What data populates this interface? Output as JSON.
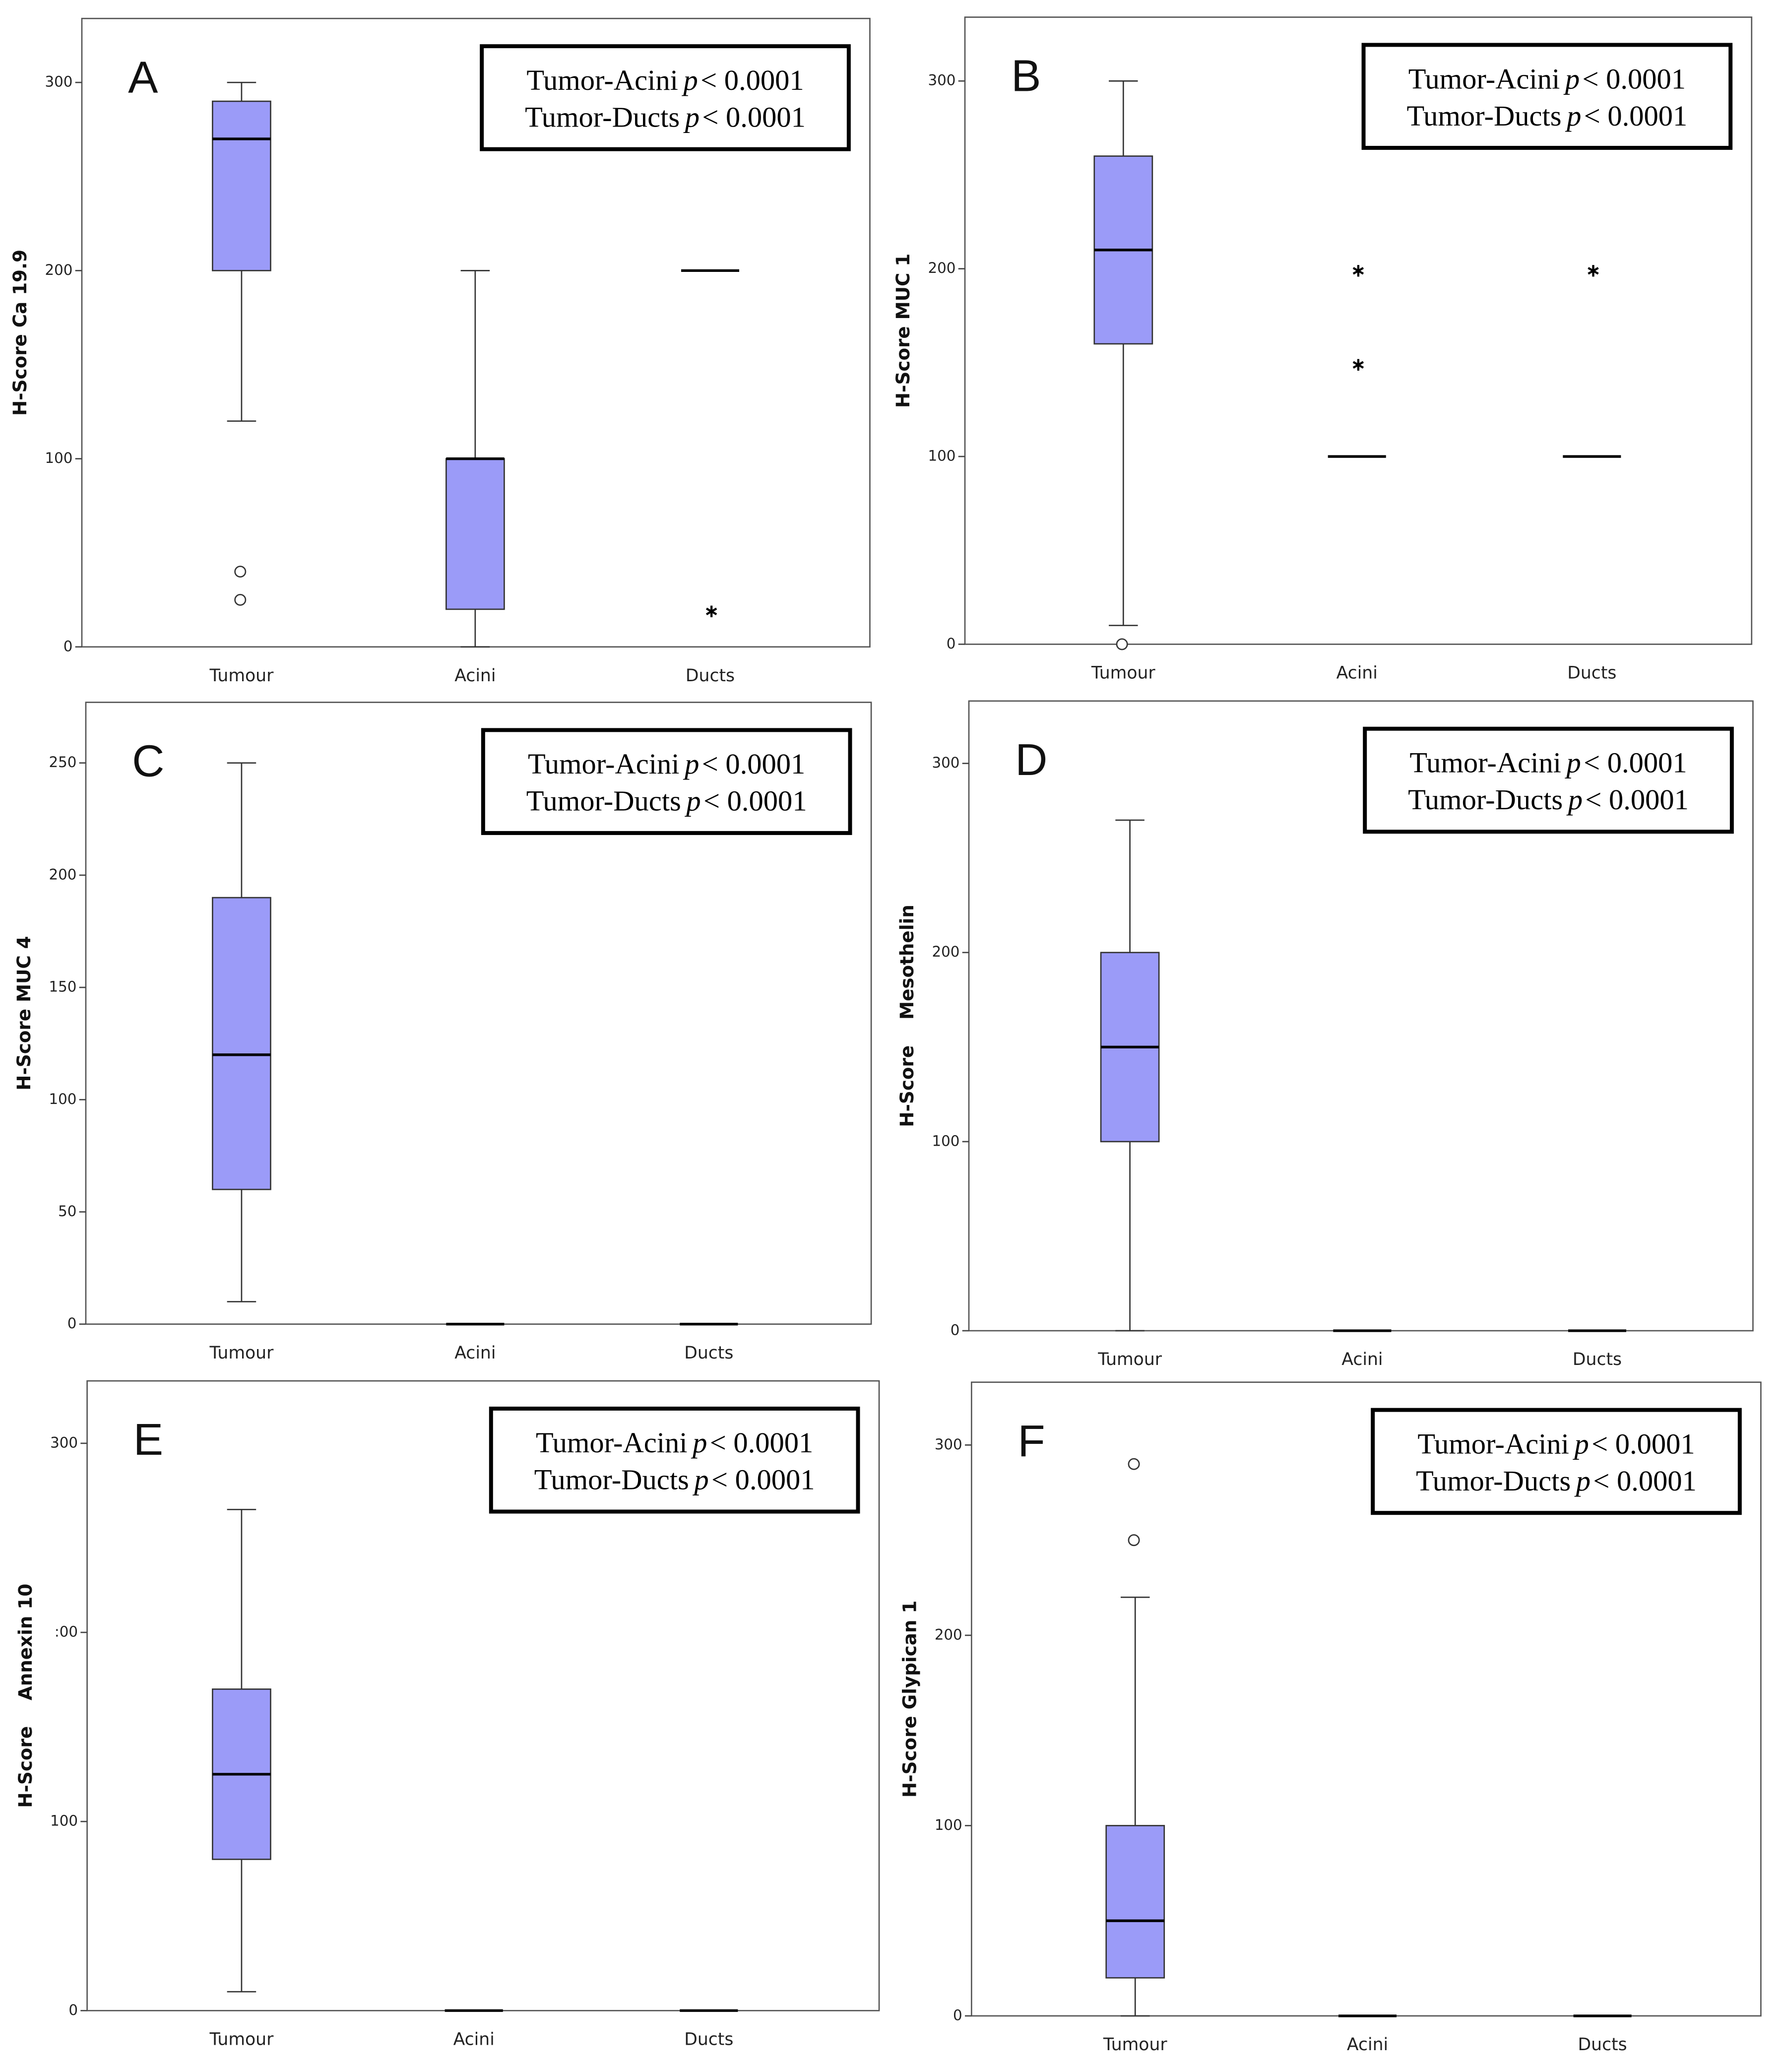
{
  "chart_data": [
    {
      "type": "box",
      "title": "A",
      "y_label": "H-Score Ca 19.9",
      "categories": [
        "Tumour",
        "Acini",
        "Ducts"
      ],
      "boxes": [
        {
          "min": 120,
          "q1": 200,
          "median": 270,
          "q3": 290,
          "max": 300,
          "outliers": [
            40,
            25
          ],
          "outlier_marker": "circle"
        },
        {
          "min": 0,
          "q1": 20,
          "median": 100,
          "q3": 100,
          "max": 200,
          "outliers": [],
          "outlier_marker": "circle"
        },
        {
          "min": 200,
          "q1": 200,
          "median": 200,
          "q3": 200,
          "max": 200,
          "outliers": [
            20
          ],
          "outlier_marker": "star"
        }
      ],
      "color": "#9b9bf8",
      "ylim": [
        0,
        334
      ],
      "yticks": [
        0,
        100,
        200,
        300
      ],
      "annotations": [
        {
          "label": "Tumor-Acini",
          "stat": "p",
          "text": "< 0.0001"
        },
        {
          "label": "Tumor-Ducts",
          "stat": "p",
          "text": "< 0.0001"
        }
      ]
    },
    {
      "type": "box",
      "title": "B",
      "y_label": "H-Score MUC 1",
      "categories": [
        "Tumour",
        "Acini",
        "Ducts"
      ],
      "boxes": [
        {
          "min": 10,
          "q1": 160,
          "median": 210,
          "q3": 260,
          "max": 300,
          "outliers": [
            0
          ],
          "outlier_marker": "circle"
        },
        {
          "min": 100,
          "q1": 100,
          "median": 100,
          "q3": 100,
          "max": 100,
          "outliers": [
            200,
            150
          ],
          "outlier_marker": "star"
        },
        {
          "min": 100,
          "q1": 100,
          "median": 100,
          "q3": 100,
          "max": 100,
          "outliers": [
            200
          ],
          "outlier_marker": "star"
        }
      ],
      "color": "#9b9bf8",
      "ylim": [
        0,
        334
      ],
      "yticks": [
        0,
        100,
        200,
        300
      ],
      "annotations": [
        {
          "label": "Tumor-Acini",
          "stat": "p",
          "text": "< 0.0001"
        },
        {
          "label": "Tumor-Ducts",
          "stat": "p",
          "text": "< 0.0001"
        }
      ]
    },
    {
      "type": "box",
      "title": "C",
      "y_label": "H-Score MUC 4",
      "categories": [
        "Tumour",
        "Acini",
        "Ducts"
      ],
      "boxes": [
        {
          "min": 10,
          "q1": 60,
          "median": 120,
          "q3": 190,
          "max": 250,
          "outliers": [],
          "outlier_marker": "circle"
        },
        {
          "min": 0,
          "q1": 0,
          "median": 0,
          "q3": 0,
          "max": 0,
          "outliers": [],
          "outlier_marker": "circle"
        },
        {
          "min": 0,
          "q1": 0,
          "median": 0,
          "q3": 0,
          "max": 0,
          "outliers": [],
          "outlier_marker": "circle"
        }
      ],
      "color": "#9b9bf8",
      "ylim": [
        0,
        277
      ],
      "yticks": [
        0,
        50,
        100,
        150,
        200,
        250
      ],
      "annotations": [
        {
          "label": "Tumor-Acini",
          "stat": "p",
          "text": "< 0.0001"
        },
        {
          "label": "Tumor-Ducts",
          "stat": "p",
          "text": "< 0.0001"
        }
      ]
    },
    {
      "type": "box",
      "title": "D",
      "y_label": "H-Score    Mesothelin",
      "categories": [
        "Tumour",
        "Acini",
        "Ducts"
      ],
      "boxes": [
        {
          "min": 0,
          "q1": 100,
          "median": 150,
          "q3": 200,
          "max": 270,
          "outliers": [],
          "outlier_marker": "circle"
        },
        {
          "min": 0,
          "q1": 0,
          "median": 0,
          "q3": 0,
          "max": 0,
          "outliers": [],
          "outlier_marker": "circle"
        },
        {
          "min": 0,
          "q1": 0,
          "median": 0,
          "q3": 0,
          "max": 0,
          "outliers": [],
          "outlier_marker": "circle"
        }
      ],
      "color": "#9b9bf8",
      "ylim": [
        0,
        333
      ],
      "yticks": [
        0,
        100,
        200,
        300
      ],
      "annotations": [
        {
          "label": "Tumor-Acini",
          "stat": "p",
          "text": "< 0.0001"
        },
        {
          "label": "Tumor-Ducts",
          "stat": "p",
          "text": "< 0.0001"
        }
      ]
    },
    {
      "type": "box",
      "title": "E",
      "y_label": "H-Score    Annexin 10",
      "categories": [
        "Tumour",
        "Acini",
        "Ducts"
      ],
      "boxes": [
        {
          "min": 10,
          "q1": 80,
          "median": 125,
          "q3": 170,
          "max": 265,
          "outliers": [],
          "outlier_marker": "circle"
        },
        {
          "min": 0,
          "q1": 0,
          "median": 0,
          "q3": 0,
          "max": 0,
          "outliers": [],
          "outlier_marker": "circle"
        },
        {
          "min": 0,
          "q1": 0,
          "median": 0,
          "q3": 0,
          "max": 0,
          "outliers": [],
          "outlier_marker": "circle"
        }
      ],
      "color": "#9b9bf8",
      "ylim": [
        0,
        333
      ],
      "yticks": [
        0,
        100,
        {
          "value": 200,
          "label": ":00"
        },
        300
      ],
      "annotations": [
        {
          "label": "Tumor-Acini",
          "stat": "p",
          "text": "< 0.0001"
        },
        {
          "label": "Tumor-Ducts",
          "stat": "p",
          "text": "< 0.0001"
        }
      ]
    },
    {
      "type": "box",
      "title": "F",
      "y_label": "H-Score Glypican 1",
      "categories": [
        "Tumour",
        "Acini",
        "Ducts"
      ],
      "boxes": [
        {
          "min": 0,
          "q1": 20,
          "median": 50,
          "q3": 100,
          "max": 220,
          "outliers": [
            290,
            250
          ],
          "outlier_marker": "circle"
        },
        {
          "min": 0,
          "q1": 0,
          "median": 0,
          "q3": 0,
          "max": 0,
          "outliers": [],
          "outlier_marker": "circle"
        },
        {
          "min": 0,
          "q1": 0,
          "median": 0,
          "q3": 0,
          "max": 0,
          "outliers": [],
          "outlier_marker": "circle"
        }
      ],
      "color": "#9b9bf8",
      "ylim": [
        0,
        333
      ],
      "yticks": [
        0,
        100,
        200,
        300
      ],
      "annotations": [
        {
          "label": "Tumor-Acini",
          "stat": "p",
          "text": "< 0.0001"
        },
        {
          "label": "Tumor-Ducts",
          "stat": "p",
          "text": "< 0.0001"
        }
      ]
    }
  ]
}
